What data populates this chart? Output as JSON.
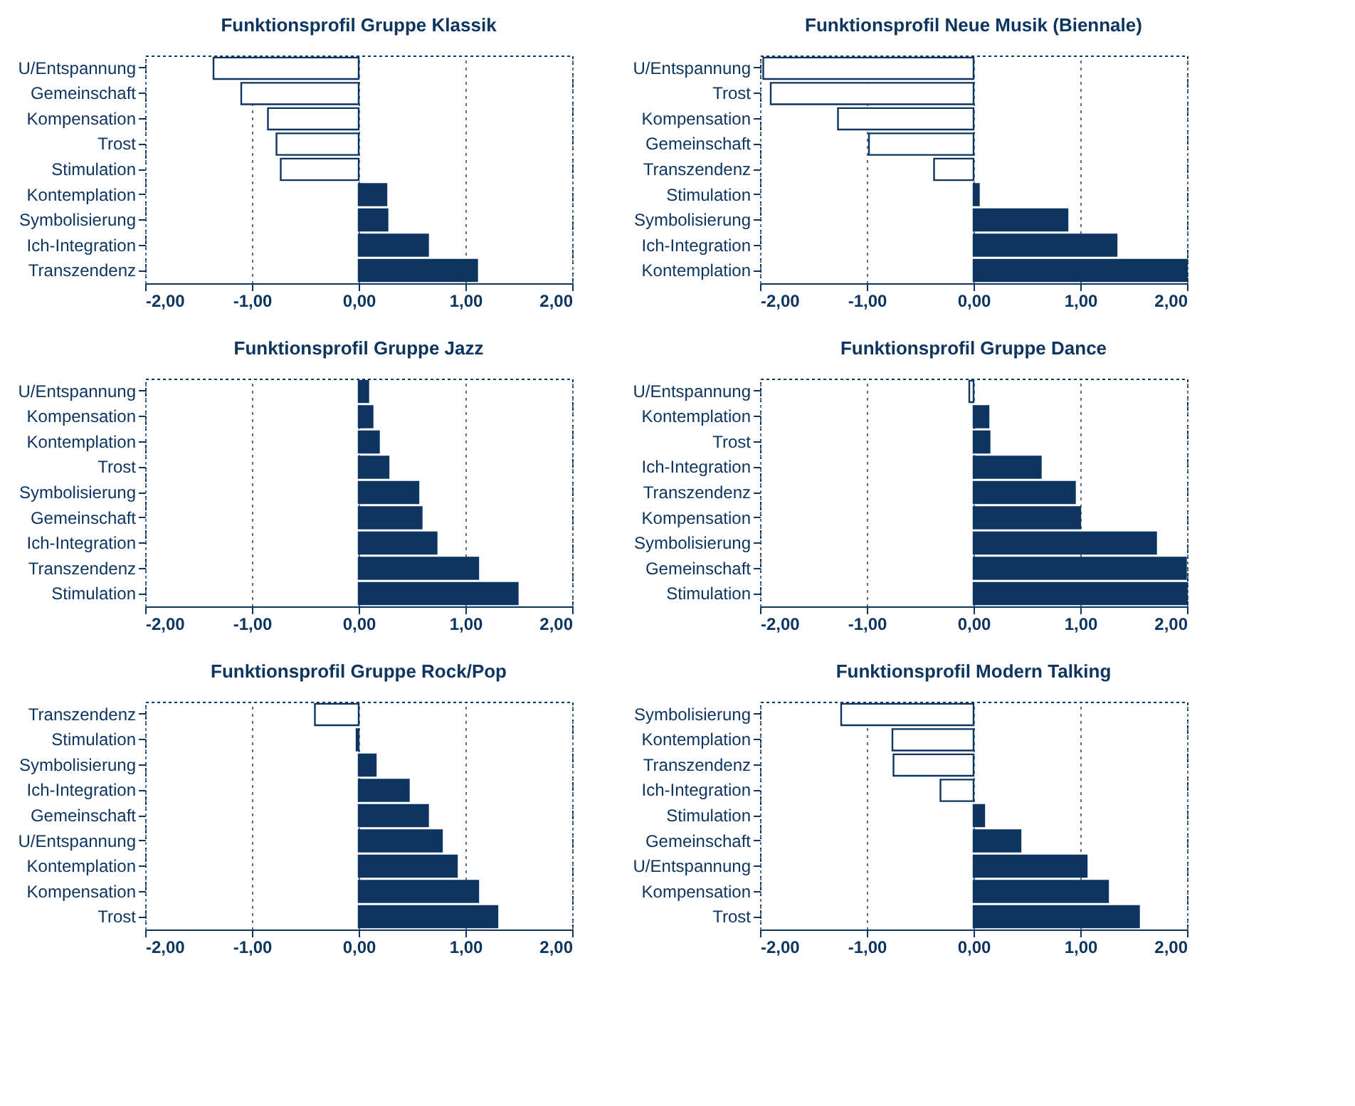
{
  "chart_data": [
    {
      "type": "bar",
      "orientation": "horizontal",
      "title": "Funktionsprofil Gruppe Klassik",
      "categories": [
        "U/Entspannung",
        "Gemeinschaft",
        "Kompensation",
        "Trost",
        "Stimulation",
        "Kontemplation",
        "Symbolisierung",
        "Ich-Integration",
        "Transzendenz"
      ],
      "values": [
        -1.36,
        -1.1,
        -0.85,
        -0.77,
        -0.73,
        0.26,
        0.27,
        0.65,
        1.11
      ],
      "colors": [
        "#ffffff",
        "#ffffff",
        "#ffffff",
        "#ffffff",
        "#ffffff",
        "#0d3560",
        "#0d3560",
        "#0d3560",
        "#0d3560"
      ],
      "xlim": [
        -2,
        2
      ],
      "xticks": [
        {
          "value": -2,
          "label": "-2,00"
        },
        {
          "value": -1,
          "label": "-1,00"
        },
        {
          "value": 0,
          "label": "0,00"
        },
        {
          "value": 1,
          "label": "1,00"
        },
        {
          "value": 2,
          "label": "2,00"
        }
      ],
      "grid": "x"
    },
    {
      "type": "bar",
      "orientation": "horizontal",
      "title": "Funktionsprofil Neue Musik (Biennale)",
      "categories": [
        "U/Entspannung",
        "Trost",
        "Kompensation",
        "Gemeinschaft",
        "Transzendenz",
        "Stimulation",
        "Symbolisierung",
        "Ich-Integration",
        "Kontemplation"
      ],
      "values": [
        -1.97,
        -1.9,
        -1.27,
        -0.98,
        -0.37,
        0.05,
        0.88,
        1.34,
        2.0
      ],
      "colors": [
        "#ffffff",
        "#ffffff",
        "#ffffff",
        "#ffffff",
        "#ffffff",
        "#0d3560",
        "#0d3560",
        "#0d3560",
        "#0d3560"
      ],
      "xlim": [
        -2,
        2
      ],
      "xticks": [
        {
          "value": -2,
          "label": "-2,00"
        },
        {
          "value": -1,
          "label": "-1,00"
        },
        {
          "value": 0,
          "label": "0,00"
        },
        {
          "value": 1,
          "label": "1,00"
        },
        {
          "value": 2,
          "label": "2,00"
        }
      ],
      "grid": "x"
    },
    {
      "type": "bar",
      "orientation": "horizontal",
      "title": "Funktionsprofil Gruppe Jazz",
      "categories": [
        "U/Entspannung",
        "Kompensation",
        "Kontemplation",
        "Trost",
        "Symbolisierung",
        "Gemeinschaft",
        "Ich-Integration",
        "Transzendenz",
        "Stimulation"
      ],
      "values": [
        0.09,
        0.13,
        0.19,
        0.28,
        0.56,
        0.59,
        0.73,
        1.12,
        1.49
      ],
      "colors": [
        "#0d3560",
        "#0d3560",
        "#0d3560",
        "#0d3560",
        "#0d3560",
        "#0d3560",
        "#0d3560",
        "#0d3560",
        "#0d3560"
      ],
      "xlim": [
        -2,
        2
      ],
      "xticks": [
        {
          "value": -2,
          "label": "-2,00"
        },
        {
          "value": -1,
          "label": "-1,00"
        },
        {
          "value": 0,
          "label": "0,00"
        },
        {
          "value": 1,
          "label": "1,00"
        },
        {
          "value": 2,
          "label": "2,00"
        }
      ],
      "grid": "x"
    },
    {
      "type": "bar",
      "orientation": "horizontal",
      "title": "Funktionsprofil Gruppe Dance",
      "categories": [
        "U/Entspannung",
        "Kontemplation",
        "Trost",
        "Ich-Integration",
        "Transzendenz",
        "Kompensation",
        "Symbolisierung",
        "Gemeinschaft",
        "Stimulation"
      ],
      "values": [
        -0.04,
        0.14,
        0.15,
        0.63,
        0.95,
        1.0,
        1.71,
        1.99,
        2.0
      ],
      "colors": [
        "#ffffff",
        "#0d3560",
        "#0d3560",
        "#0d3560",
        "#0d3560",
        "#0d3560",
        "#0d3560",
        "#0d3560",
        "#0d3560"
      ],
      "xlim": [
        -2,
        2
      ],
      "xticks": [
        {
          "value": -2,
          "label": "-2,00"
        },
        {
          "value": -1,
          "label": "-1,00"
        },
        {
          "value": 0,
          "label": "0,00"
        },
        {
          "value": 1,
          "label": "1,00"
        },
        {
          "value": 2,
          "label": "2,00"
        }
      ],
      "grid": "x"
    },
    {
      "type": "bar",
      "orientation": "horizontal",
      "title": "Funktionsprofil Gruppe Rock/Pop",
      "categories": [
        "Transzendenz",
        "Stimulation",
        "Symbolisierung",
        "Ich-Integration",
        "Gemeinschaft",
        "U/Entspannung",
        "Kontemplation",
        "Kompensation",
        "Trost"
      ],
      "values": [
        -0.41,
        -0.02,
        0.16,
        0.47,
        0.65,
        0.78,
        0.92,
        1.12,
        1.3
      ],
      "colors": [
        "#ffffff",
        "#0d3560",
        "#0d3560",
        "#0d3560",
        "#0d3560",
        "#0d3560",
        "#0d3560",
        "#0d3560",
        "#0d3560"
      ],
      "xlim": [
        -2,
        2
      ],
      "xticks": [
        {
          "value": -2,
          "label": "-2,00"
        },
        {
          "value": -1,
          "label": "-1,00"
        },
        {
          "value": 0,
          "label": "0,00"
        },
        {
          "value": 1,
          "label": "1,00"
        },
        {
          "value": 2,
          "label": "2,00"
        }
      ],
      "grid": "x"
    },
    {
      "type": "bar",
      "orientation": "horizontal",
      "title": "Funktionsprofil Modern Talking",
      "categories": [
        "Symbolisierung",
        "Kontemplation",
        "Transzendenz",
        "Ich-Integration",
        "Stimulation",
        "Gemeinschaft",
        "U/Entspannung",
        "Kompensation",
        "Trost"
      ],
      "values": [
        -1.24,
        -0.76,
        -0.75,
        -0.31,
        0.1,
        0.44,
        1.06,
        1.26,
        1.55
      ],
      "colors": [
        "#ffffff",
        "#ffffff",
        "#ffffff",
        "#ffffff",
        "#0d3560",
        "#0d3560",
        "#0d3560",
        "#0d3560",
        "#0d3560"
      ],
      "xlim": [
        -2,
        2
      ],
      "xticks": [
        {
          "value": -2,
          "label": "-2,00"
        },
        {
          "value": -1,
          "label": "-1,00"
        },
        {
          "value": 0,
          "label": "0,00"
        },
        {
          "value": 1,
          "label": "1,00"
        },
        {
          "value": 2,
          "label": "2,00"
        }
      ],
      "grid": "x"
    }
  ]
}
